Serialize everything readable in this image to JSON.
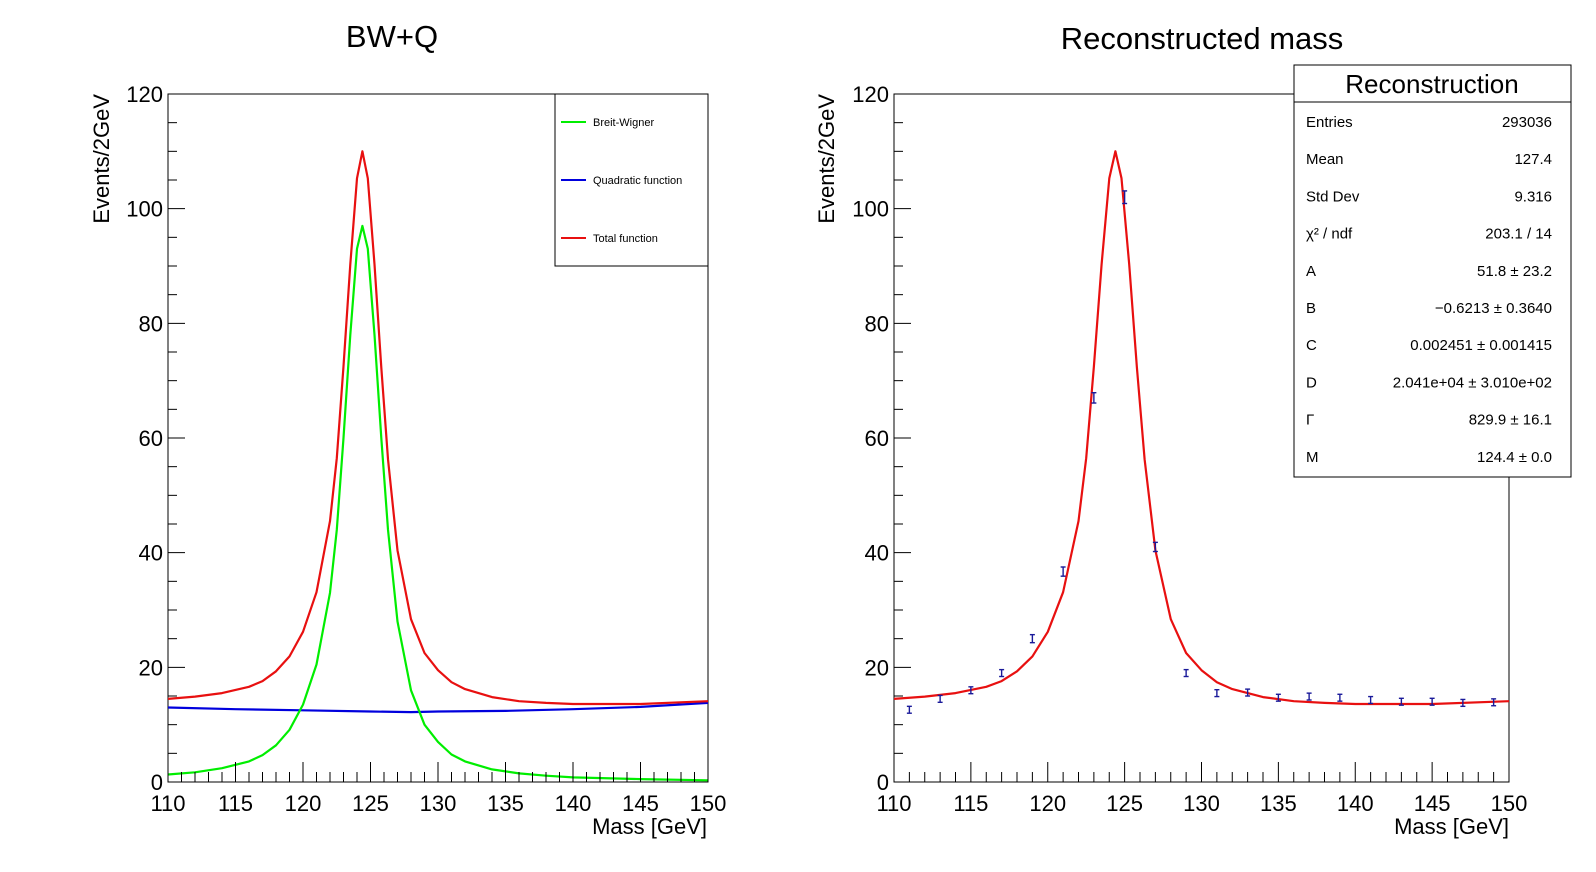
{
  "chart_data": [
    {
      "type": "line",
      "title": "BW+Q",
      "xlabel": "Mass [GeV]",
      "ylabel": "Events/2GeV",
      "xlim": [
        110,
        150
      ],
      "ylim": [
        0,
        120
      ],
      "xticks": [
        110,
        115,
        120,
        125,
        130,
        135,
        140,
        145,
        150
      ],
      "yticks": [
        0,
        20,
        40,
        60,
        80,
        100,
        120
      ],
      "legend_position": "top-right",
      "series": [
        {
          "name": "Breit-Wigner",
          "color": "#00ee00",
          "x": [
            110,
            112,
            114,
            116,
            117,
            118,
            119,
            120,
            121,
            122,
            122.5,
            123,
            123.5,
            124,
            124.4,
            124.8,
            125.3,
            125.8,
            126.3,
            127,
            128,
            129,
            130,
            131,
            132,
            134,
            136,
            138,
            140,
            145,
            150
          ],
          "y": [
            1.3,
            1.7,
            2.4,
            3.6,
            4.7,
            6.4,
            9.1,
            13.5,
            20.5,
            33,
            44,
            60,
            78,
            93,
            97,
            93,
            78,
            60,
            44,
            28,
            16,
            10,
            7,
            4.8,
            3.6,
            2.2,
            1.5,
            1.1,
            0.8,
            0.5,
            0.3
          ]
        },
        {
          "name": "Quadratic function",
          "color": "#0000dd",
          "x": [
            110,
            115,
            120,
            125,
            128,
            130,
            135,
            140,
            145,
            150
          ],
          "y": [
            13.0,
            12.7,
            12.5,
            12.3,
            12.2,
            12.3,
            12.4,
            12.7,
            13.1,
            13.8
          ]
        },
        {
          "name": "Total function",
          "color": "#e81010",
          "x": [
            110,
            112,
            114,
            116,
            117,
            118,
            119,
            120,
            121,
            122,
            122.5,
            123,
            123.5,
            124,
            124.4,
            124.8,
            125.3,
            125.8,
            126.3,
            127,
            128,
            129,
            130,
            131,
            132,
            134,
            136,
            138,
            140,
            145,
            150
          ],
          "y": [
            14.5,
            14.9,
            15.5,
            16.6,
            17.6,
            19.3,
            21.9,
            26.2,
            33.1,
            45.5,
            56.5,
            72.5,
            90.3,
            105.3,
            110,
            105.3,
            90.3,
            72.3,
            56.3,
            40.4,
            28.4,
            22.5,
            19.5,
            17.4,
            16.2,
            14.8,
            14.1,
            13.8,
            13.6,
            13.6,
            14.1
          ]
        }
      ]
    },
    {
      "type": "scatter",
      "title": "Reconstructed mass",
      "xlabel": "Mass [GeV]",
      "ylabel": "Events/2GeV",
      "xlim": [
        110,
        150
      ],
      "ylim": [
        0,
        120
      ],
      "xticks": [
        110,
        115,
        120,
        125,
        130,
        135,
        140,
        145,
        150
      ],
      "yticks": [
        0,
        20,
        40,
        60,
        80,
        100,
        120
      ],
      "series": [
        {
          "color": "#1a1a9a",
          "x": [
            111,
            113,
            115,
            117,
            119,
            121,
            123,
            125,
            127,
            129,
            131,
            133,
            135,
            137,
            139,
            141,
            143,
            145,
            147,
            149
          ],
          "y": [
            12.6,
            14.5,
            16.0,
            19.0,
            25.0,
            36.7,
            67.0,
            102.0,
            41.0,
            19.0,
            15.5,
            15.6,
            14.7,
            14.9,
            14.7,
            14.3,
            14.0,
            14.0,
            13.8,
            13.9
          ],
          "yerr": [
            0.6,
            0.6,
            0.6,
            0.6,
            0.7,
            0.8,
            0.9,
            1.1,
            0.8,
            0.6,
            0.6,
            0.6,
            0.6,
            0.6,
            0.6,
            0.6,
            0.6,
            0.6,
            0.6,
            0.6
          ]
        },
        {
          "color": "#e81010",
          "x": [
            110,
            112,
            114,
            116,
            117,
            118,
            119,
            120,
            121,
            122,
            122.5,
            123,
            123.5,
            124,
            124.4,
            124.8,
            125.3,
            125.8,
            126.3,
            127,
            128,
            129,
            130,
            131,
            132,
            134,
            136,
            138,
            140,
            145,
            150
          ],
          "y": [
            14.5,
            14.9,
            15.5,
            16.6,
            17.6,
            19.3,
            21.9,
            26.2,
            33.1,
            45.5,
            56.5,
            72.5,
            90.3,
            105.3,
            110,
            105.3,
            90.3,
            72.3,
            56.3,
            40.4,
            28.4,
            22.5,
            19.5,
            17.4,
            16.2,
            14.8,
            14.1,
            13.8,
            13.6,
            13.6,
            14.1
          ]
        }
      ],
      "stats_box": {
        "position": "top-right",
        "title": "Reconstruction",
        "rows": [
          {
            "label": "Entries",
            "value": "293036"
          },
          {
            "label": "Mean",
            "value": "127.4"
          },
          {
            "label": "Std Dev",
            "value": "9.316"
          },
          {
            "label": "χ² / ndf",
            "value": "203.1 / 14"
          },
          {
            "label": "A",
            "value": "51.8 ± 23.2"
          },
          {
            "label": "B",
            "value": "−0.6213 ± 0.3640"
          },
          {
            "label": "C",
            "value": "0.002451 ± 0.001415"
          },
          {
            "label": "D",
            "value": "2.041e+04 ± 3.010e+02"
          },
          {
            "label": "Γ",
            "value": "829.9 ± 16.1"
          },
          {
            "label": "M",
            "value": "124.4 ± 0.0"
          }
        ]
      }
    }
  ]
}
